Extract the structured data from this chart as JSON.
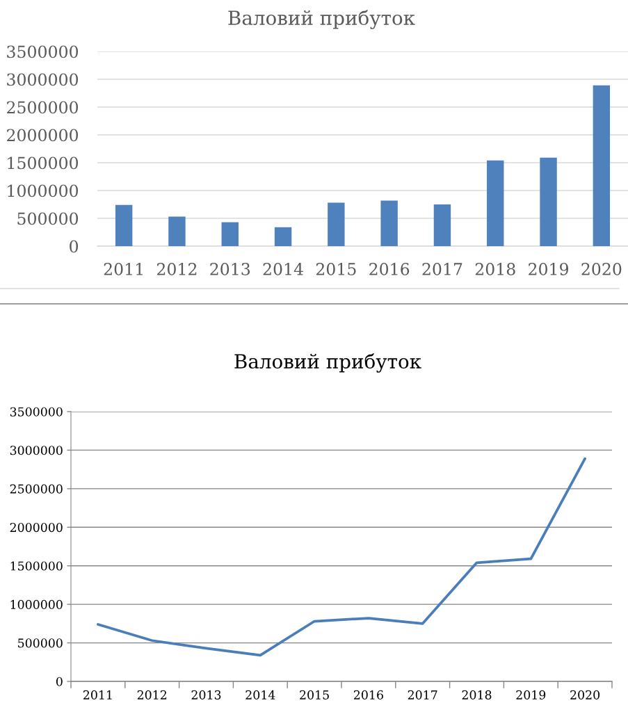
{
  "chart_data": [
    {
      "type": "bar",
      "title": "Валовий прибуток",
      "categories": [
        "2011",
        "2012",
        "2013",
        "2014",
        "2015",
        "2016",
        "2017",
        "2018",
        "2019",
        "2020"
      ],
      "values": [
        740000,
        530000,
        430000,
        340000,
        780000,
        820000,
        750000,
        1540000,
        1590000,
        2890000
      ],
      "color": "#4f81bd",
      "ylim": [
        0,
        3500000
      ],
      "yticks": [
        0,
        500000,
        1000000,
        1500000,
        2000000,
        2500000,
        3000000,
        3500000
      ],
      "grid": "y"
    },
    {
      "type": "line",
      "title": "Валовий прибуток",
      "categories": [
        "2011",
        "2012",
        "2013",
        "2014",
        "2015",
        "2016",
        "2017",
        "2018",
        "2019",
        "2020"
      ],
      "values": [
        740000,
        530000,
        430000,
        340000,
        780000,
        820000,
        750000,
        1540000,
        1590000,
        2890000
      ],
      "color": "#4a7ebb",
      "ylim": [
        0,
        3500000
      ],
      "yticks": [
        0,
        500000,
        1000000,
        1500000,
        2000000,
        2500000,
        3000000,
        3500000
      ],
      "grid": "y"
    }
  ]
}
